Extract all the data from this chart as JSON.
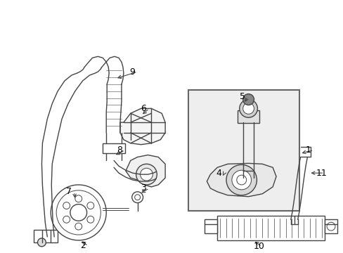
{
  "bg_color": "#ffffff",
  "line_color": "#444444",
  "label_color": "#000000",
  "box_bg": "#eeeeee",
  "figsize": [
    4.89,
    3.6
  ],
  "dpi": 100
}
